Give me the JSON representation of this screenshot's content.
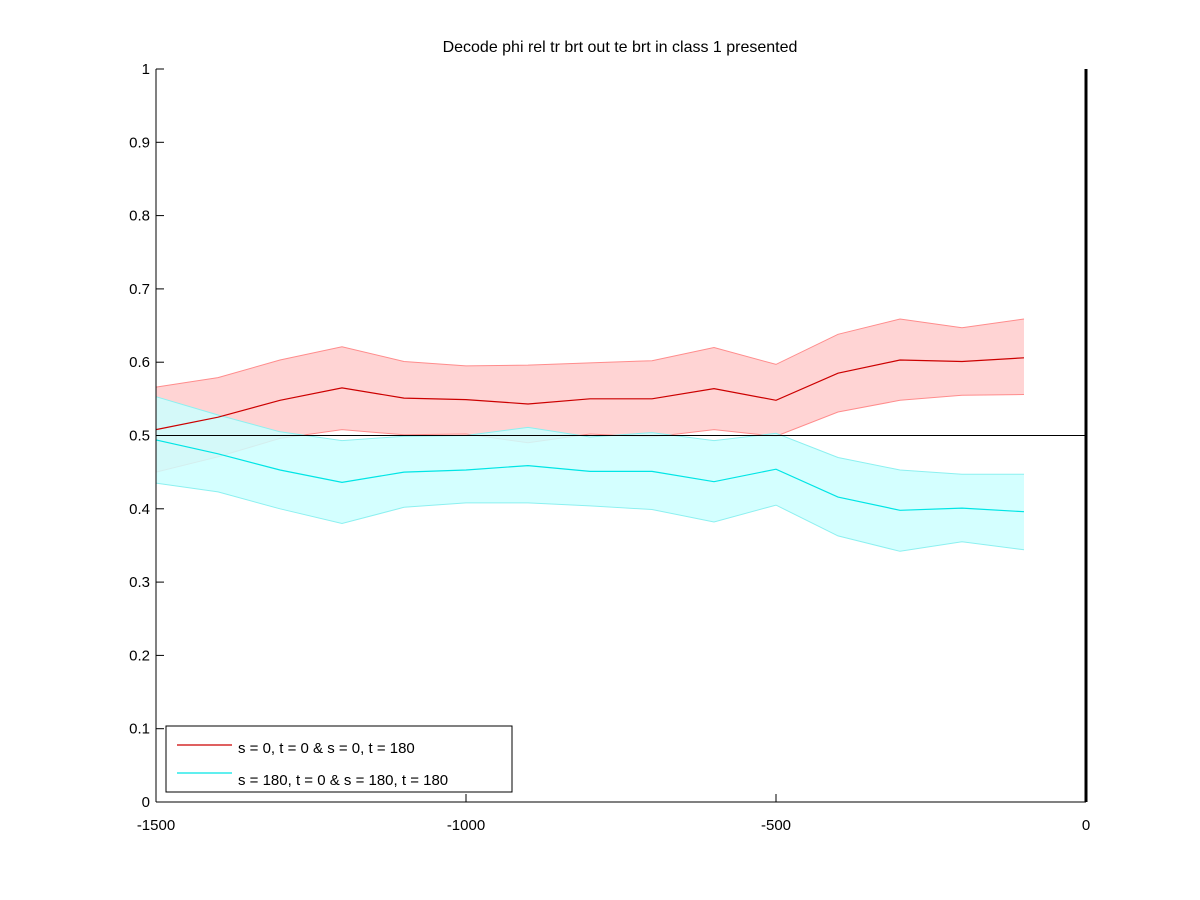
{
  "chart_data": {
    "type": "line",
    "title": "Decode phi rel tr brt out te brt in  class 1 presented",
    "xlabel": "",
    "ylabel": "",
    "xlim": [
      -1500,
      0
    ],
    "ylim": [
      0,
      1
    ],
    "x_ticks": [
      -1500,
      -1000,
      -500,
      0
    ],
    "x_tick_labels": [
      "-1500",
      "-1000",
      "-500",
      "0"
    ],
    "y_ticks": [
      0,
      0.1,
      0.2,
      0.3,
      0.4,
      0.5,
      0.6,
      0.7,
      0.8,
      0.9,
      1
    ],
    "y_tick_labels": [
      "0",
      "0.1",
      "0.2",
      "0.3",
      "0.4",
      "0.5",
      "0.6",
      "0.7",
      "0.8",
      "0.9",
      "1"
    ],
    "grid": false,
    "legend_position": "bottom-left",
    "reference_lines": [
      {
        "orientation": "horizontal",
        "value": 0.5,
        "color": "#000000"
      },
      {
        "orientation": "vertical",
        "value": 0,
        "color": "#000000"
      }
    ],
    "x": [
      -1500,
      -1400,
      -1300,
      -1200,
      -1100,
      -1000,
      -900,
      -800,
      -700,
      -600,
      -500,
      -400,
      -300,
      -200,
      -100
    ],
    "series": [
      {
        "name": "s = 0, t = 0 & s = 0, t = 180",
        "line_color": "#cc0000",
        "band_color": "#ffcccc",
        "band_edge_color": "#ff8c8c",
        "values": [
          0.508,
          0.525,
          0.548,
          0.565,
          0.551,
          0.549,
          0.543,
          0.55,
          0.55,
          0.564,
          0.548,
          0.585,
          0.603,
          0.601,
          0.606
        ],
        "upper": [
          0.566,
          0.579,
          0.603,
          0.621,
          0.601,
          0.595,
          0.596,
          0.599,
          0.602,
          0.62,
          0.597,
          0.638,
          0.659,
          0.647,
          0.659
        ],
        "lower": [
          0.45,
          0.471,
          0.496,
          0.508,
          0.501,
          0.502,
          0.49,
          0.502,
          0.498,
          0.508,
          0.499,
          0.532,
          0.548,
          0.555,
          0.556
        ]
      },
      {
        "name": "s = 180, t = 0 & s = 180, t = 180",
        "line_color": "#00e5e5",
        "band_color": "#ccffff",
        "band_edge_color": "#8cf0f0",
        "values": [
          0.494,
          0.475,
          0.453,
          0.436,
          0.45,
          0.453,
          0.459,
          0.451,
          0.451,
          0.437,
          0.454,
          0.416,
          0.398,
          0.401,
          0.396
        ],
        "upper": [
          0.553,
          0.528,
          0.505,
          0.493,
          0.499,
          0.5,
          0.511,
          0.498,
          0.504,
          0.493,
          0.503,
          0.47,
          0.453,
          0.447,
          0.447
        ],
        "lower": [
          0.435,
          0.423,
          0.4,
          0.38,
          0.402,
          0.408,
          0.408,
          0.404,
          0.399,
          0.382,
          0.405,
          0.363,
          0.342,
          0.355,
          0.344
        ]
      }
    ]
  }
}
